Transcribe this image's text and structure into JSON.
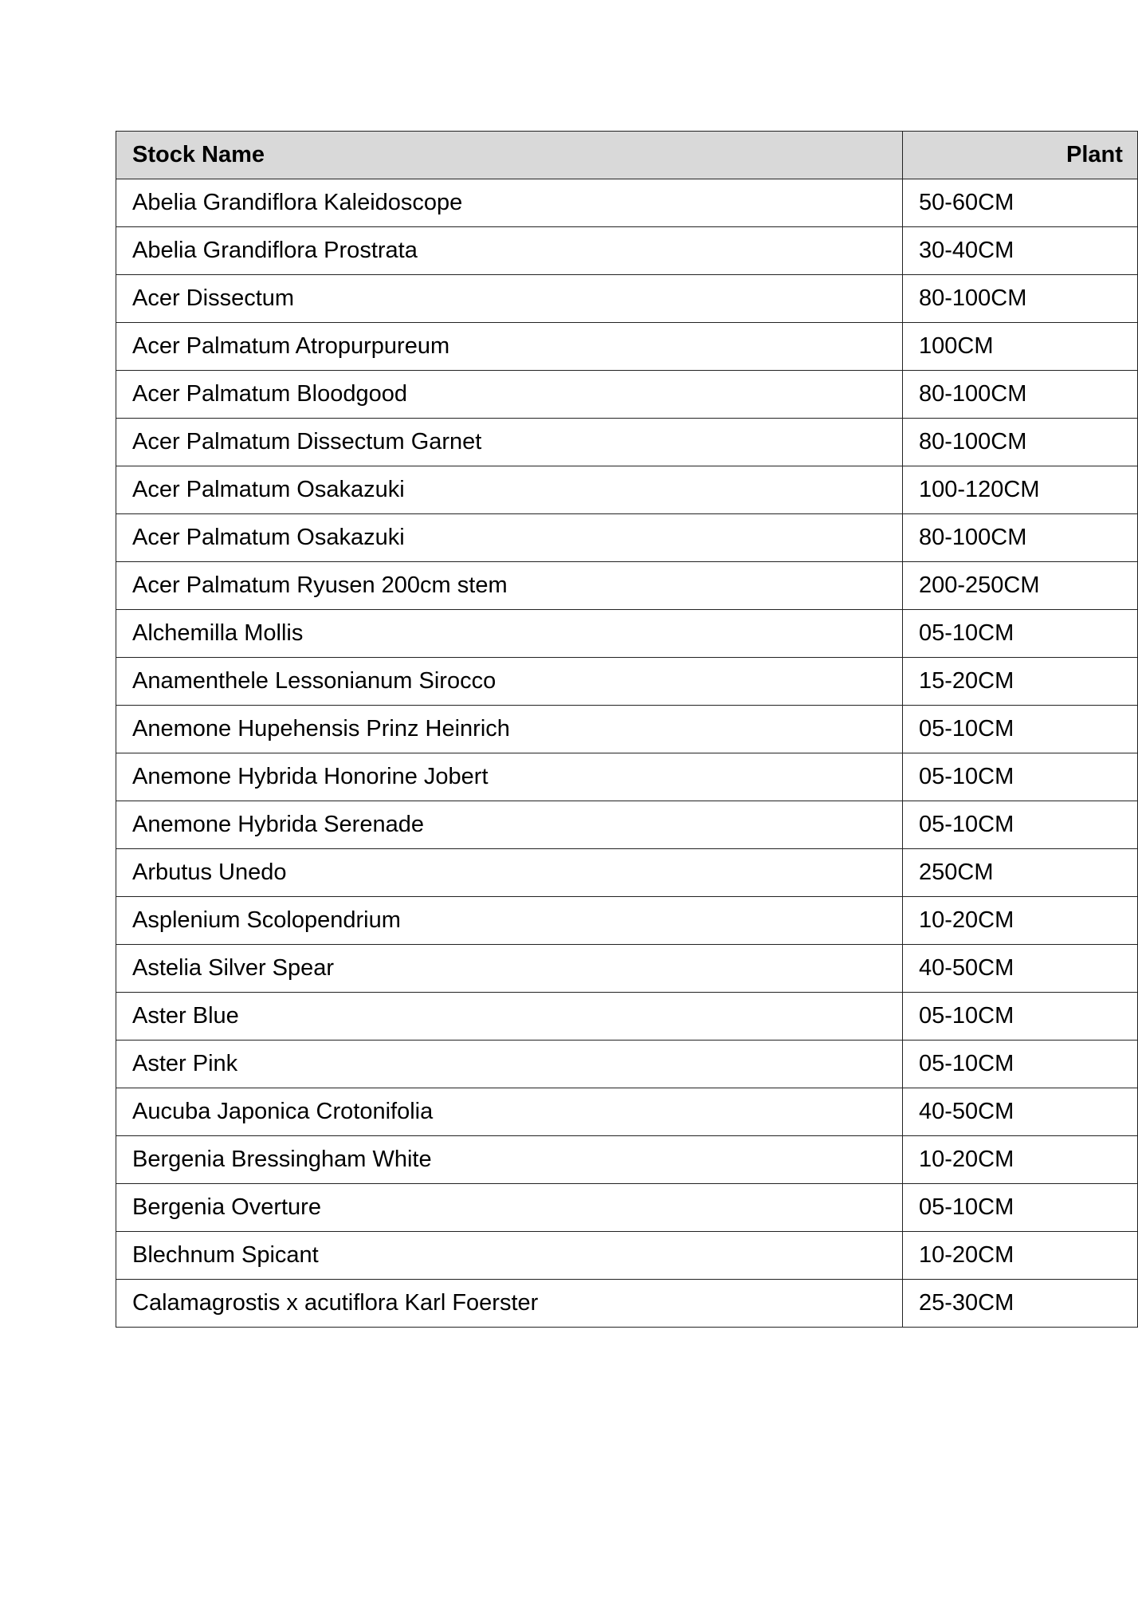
{
  "table": {
    "headers": [
      "Stock Name",
      "Plant"
    ],
    "rows": [
      [
        "Abelia Grandiflora Kaleidoscope",
        "50-60CM"
      ],
      [
        "Abelia Grandiflora Prostrata",
        "30-40CM"
      ],
      [
        "Acer Dissectum",
        "80-100CM"
      ],
      [
        "Acer Palmatum Atropurpureum",
        "100CM"
      ],
      [
        "Acer Palmatum Bloodgood",
        "80-100CM"
      ],
      [
        "Acer Palmatum Dissectum Garnet",
        "80-100CM"
      ],
      [
        "Acer Palmatum Osakazuki",
        "100-120CM"
      ],
      [
        "Acer Palmatum Osakazuki",
        "80-100CM"
      ],
      [
        "Acer Palmatum Ryusen 200cm stem",
        "200-250CM"
      ],
      [
        "Alchemilla Mollis",
        "05-10CM"
      ],
      [
        "Anamenthele Lessonianum Sirocco",
        "15-20CM"
      ],
      [
        "Anemone Hupehensis Prinz Heinrich",
        "05-10CM"
      ],
      [
        "Anemone Hybrida Honorine Jobert",
        "05-10CM"
      ],
      [
        "Anemone Hybrida Serenade",
        "05-10CM"
      ],
      [
        "Arbutus Unedo",
        "250CM"
      ],
      [
        "Asplenium Scolopendrium",
        "10-20CM"
      ],
      [
        "Astelia Silver Spear",
        "40-50CM"
      ],
      [
        "Aster Blue",
        "05-10CM"
      ],
      [
        "Aster Pink",
        "05-10CM"
      ],
      [
        "Aucuba Japonica Crotonifolia",
        "40-50CM"
      ],
      [
        "Bergenia Bressingham White",
        "10-20CM"
      ],
      [
        "Bergenia Overture",
        "05-10CM"
      ],
      [
        "Blechnum Spicant",
        "10-20CM"
      ],
      [
        "Calamagrostis x acutiflora Karl Foerster",
        "25-30CM"
      ]
    ]
  }
}
